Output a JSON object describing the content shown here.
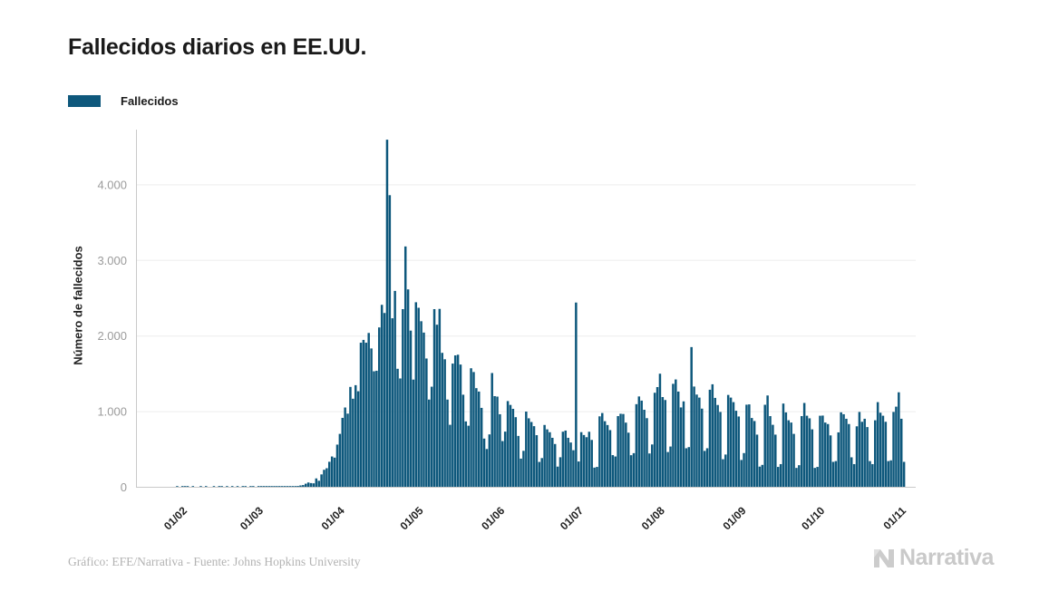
{
  "header": {
    "title": "Fallecidos diarios en EE.UU."
  },
  "legend": {
    "items": [
      {
        "label": "Fallecidos",
        "color": "#0e587c"
      }
    ]
  },
  "footer": {
    "credit": "Gráfico: EFE/Narrativa - Fuente: Johns Hopkins University",
    "logo_text": "Narrativa"
  },
  "colors": {
    "bar": "#0e587c",
    "grid": "#ededed",
    "axis": "#c9c9c9",
    "y_tick_text": "#9b9b9b",
    "x_tick_text": "#1f1f1f",
    "logo": "#c9c9c9"
  },
  "chart_data": {
    "type": "bar",
    "title": "Fallecidos diarios en EE.UU.",
    "series_name": "Fallecidos",
    "xlabel": "",
    "ylabel": "Número de fallecidos",
    "bar_color": "#0e587c",
    "grid": "horizontal",
    "legend_position": "top-left",
    "ylim": [
      0,
      4700
    ],
    "y_ticks": [
      0,
      1000,
      2000,
      3000,
      4000
    ],
    "y_tick_labels": [
      "0",
      "1.000",
      "2.000",
      "3.000",
      "4.000"
    ],
    "x_tick_labels": [
      "01/02",
      "01/03",
      "01/04",
      "01/05",
      "01/06",
      "01/07",
      "01/08",
      "01/09",
      "01/10",
      "01/11"
    ],
    "x_start_date": "2020-01-26",
    "values": [
      0,
      0,
      1,
      0,
      1,
      1,
      1,
      0,
      1,
      0,
      0,
      1,
      0,
      1,
      0,
      0,
      1,
      0,
      1,
      1,
      0,
      1,
      0,
      1,
      0,
      1,
      0,
      1,
      1,
      0,
      1,
      1,
      0,
      1,
      1,
      1,
      2,
      4,
      2,
      3,
      4,
      3,
      4,
      5,
      4,
      7,
      6,
      10,
      11,
      18,
      23,
      41,
      57,
      49,
      46,
      111,
      80,
      164,
      225,
      246,
      331,
      401,
      386,
      558,
      700,
      912,
      1049,
      968,
      1321,
      1165,
      1344,
      1264,
      1906,
      1943,
      1906,
      2035,
      1830,
      1528,
      1535,
      2108,
      2407,
      2299,
      4591,
      3857,
      2229,
      2591,
      1561,
      1433,
      2350,
      3179,
      2611,
      2066,
      1418,
      2441,
      2368,
      2190,
      2040,
      1697,
      1154,
      1324,
      2350,
      2144,
      2353,
      1772,
      1687,
      1154,
      820,
      1630,
      1738,
      1747,
      1617,
      1218,
      865,
      808,
      1568,
      1518,
      1305,
      1260,
      1044,
      638,
      500,
      693,
      1505,
      1199,
      1193,
      960,
      605,
      730,
      1134,
      1083,
      1031,
      921,
      673,
      373,
      476,
      995,
      906,
      857,
      802,
      683,
      329,
      380,
      818,
      760,
      722,
      648,
      566,
      267,
      391,
      729,
      744,
      648,
      586,
      484,
      2437,
      335,
      723,
      685,
      656,
      728,
      620,
      254,
      263,
      932,
      976,
      868,
      817,
      750,
      419,
      401,
      935,
      966,
      963,
      849,
      716,
      418,
      445,
      1093,
      1195,
      1140,
      1019,
      908,
      441,
      560,
      1244,
      1319,
      1496,
      1187,
      1148,
      460,
      533,
      1362,
      1420,
      1260,
      1050,
      1130,
      510,
      525,
      1848,
      1326,
      1220,
      1180,
      1034,
      475,
      510,
      1284,
      1356,
      1176,
      1082,
      990,
      365,
      427,
      1215,
      1180,
      1120,
      1006,
      930,
      355,
      446,
      1086,
      1090,
      910,
      870,
      690,
      267,
      290,
      1085,
      1208,
      935,
      820,
      690,
      263,
      300,
      1101,
      984,
      880,
      850,
      700,
      250,
      286,
      935,
      1109,
      940,
      906,
      760,
      250,
      263,
      940,
      942,
      850,
      830,
      680,
      330,
      340,
      720,
      985,
      960,
      900,
      830,
      390,
      300,
      800,
      990,
      860,
      900,
      790,
      340,
      300,
      880,
      1120,
      980,
      940,
      860,
      340,
      350,
      990,
      1060,
      1250,
      900,
      330
    ]
  }
}
